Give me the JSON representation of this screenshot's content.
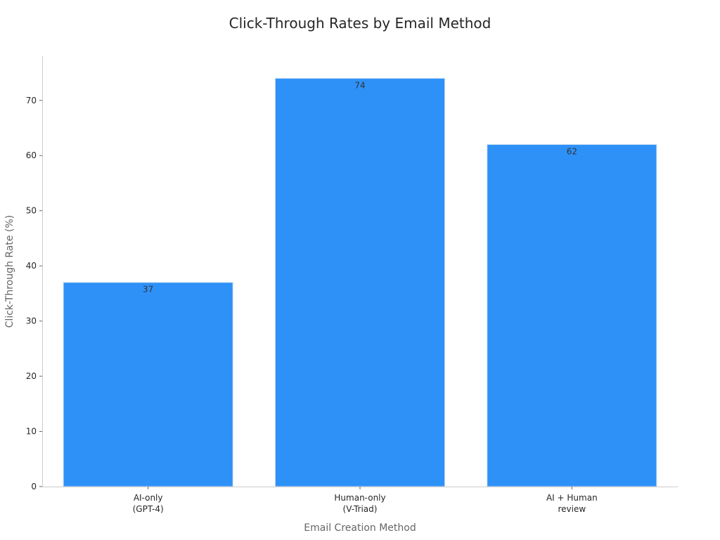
{
  "chart_data": {
    "type": "bar",
    "title": "Click-Through Rates by Email Method",
    "xlabel": "Email Creation Method",
    "ylabel": "Click-Through Rate (%)",
    "categories": [
      [
        "AI-only",
        "(GPT-4)"
      ],
      [
        "Human-only",
        "(V-Triad)"
      ],
      [
        "AI + Human",
        "review"
      ]
    ],
    "values": [
      37,
      74,
      62
    ],
    "data_labels": [
      "37",
      "74",
      "62"
    ],
    "ylim": [
      0,
      78
    ],
    "yticks": [
      0,
      10,
      20,
      30,
      40,
      50,
      60,
      70
    ],
    "grid": false,
    "legend": "none",
    "colors": {
      "bar": "#2e91f8",
      "bar_edge": "#c8dcf0",
      "axis": "#cccccc",
      "tick_text": "#262626",
      "axis_title": "#666666",
      "title": "#262626"
    }
  }
}
